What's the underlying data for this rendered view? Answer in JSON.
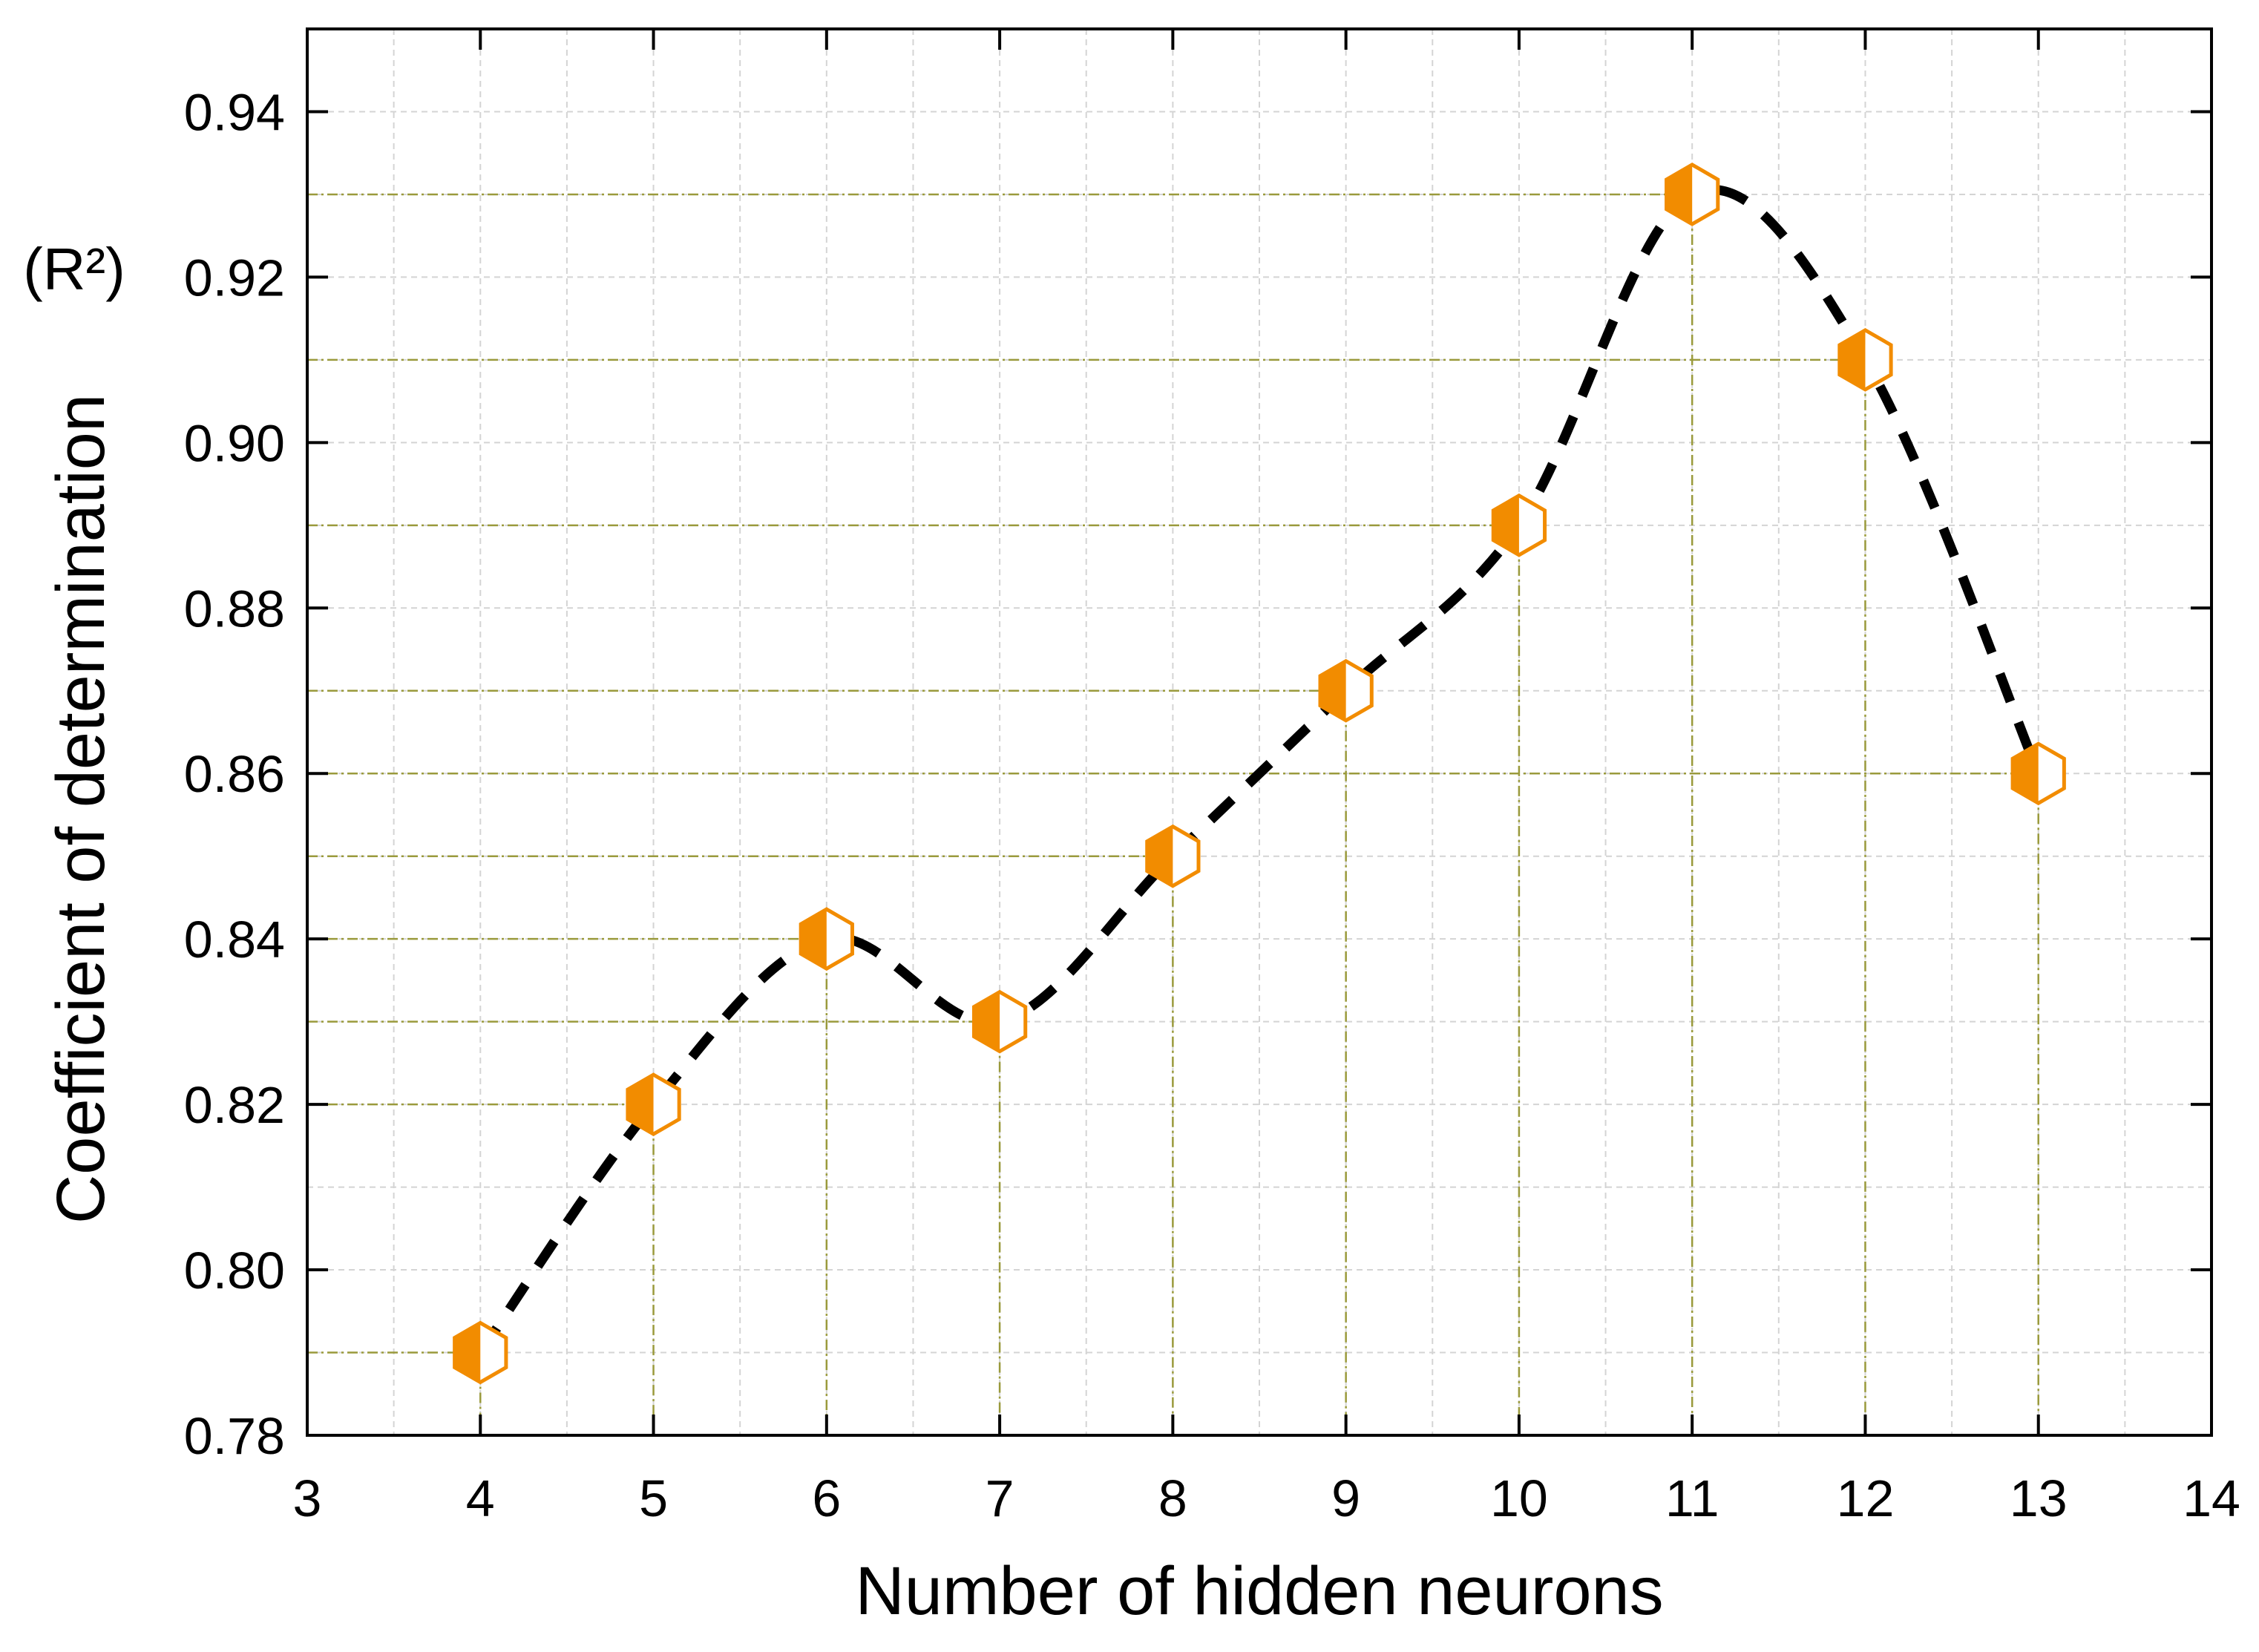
{
  "chart_data": {
    "type": "line",
    "x_label": "Number of hidden neurons",
    "y_label": "Coefficient of determination",
    "y_label_unit": "(R²)",
    "x": [
      4,
      5,
      6,
      7,
      8,
      9,
      10,
      11,
      12,
      13
    ],
    "series": [
      {
        "name": "R²",
        "color": "#f28c00",
        "values": [
          0.79,
          0.82,
          0.84,
          0.83,
          0.85,
          0.87,
          0.89,
          0.93,
          0.91,
          0.86
        ]
      }
    ],
    "xlim": [
      3,
      14
    ],
    "xticks": [
      3,
      4,
      5,
      6,
      7,
      8,
      9,
      10,
      11,
      12,
      13,
      14
    ],
    "ylim": [
      0.78,
      0.95
    ],
    "yticks": [
      0.78,
      {
        "value": 0.8,
        "label": "0.80"
      },
      0.82,
      0.84,
      0.86,
      0.88,
      {
        "value": 0.9,
        "label": "0.90"
      },
      0.92,
      0.94
    ],
    "grid": true,
    "line_color": "#000000",
    "line_style": "dashed",
    "drop_line_color": "#9a9a3c"
  }
}
